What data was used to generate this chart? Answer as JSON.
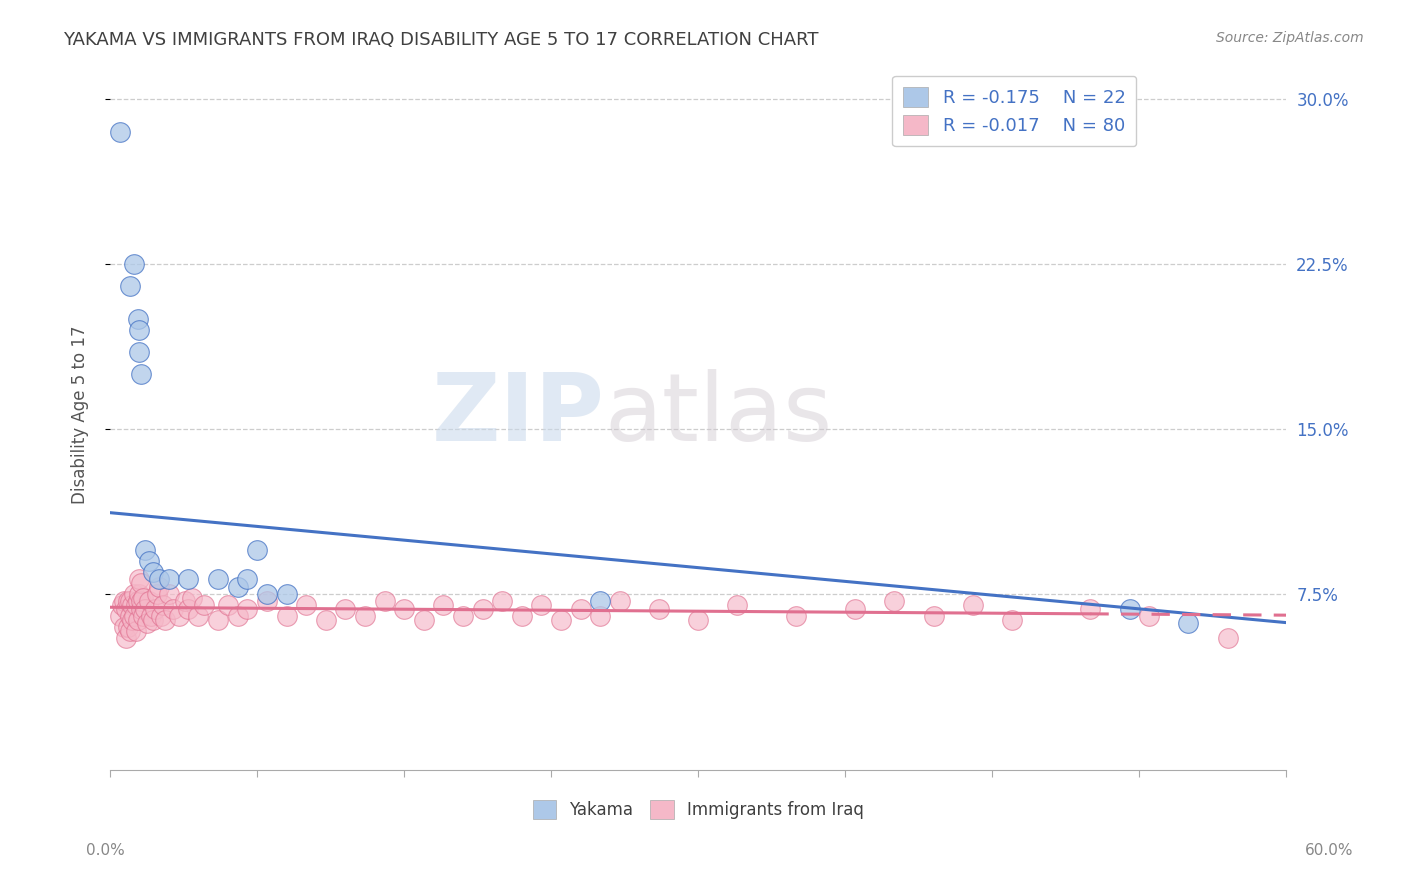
{
  "title": "YAKAMA VS IMMIGRANTS FROM IRAQ DISABILITY AGE 5 TO 17 CORRELATION CHART",
  "source_text": "Source: ZipAtlas.com",
  "ylabel": "Disability Age 5 to 17",
  "xmin": 0.0,
  "xmax": 0.6,
  "ymin": -0.005,
  "ymax": 0.318,
  "yticks": [
    0.075,
    0.15,
    0.225,
    0.3
  ],
  "ytick_labels": [
    "7.5%",
    "15.0%",
    "22.5%",
    "30.0%"
  ],
  "watermark_zip": "ZIP",
  "watermark_atlas": "atlas",
  "legend_r1": "-0.175",
  "legend_n1": "22",
  "legend_r2": "-0.017",
  "legend_n2": "80",
  "series1_label": "Yakama",
  "series2_label": "Immigrants from Iraq",
  "series1_color": "#adc8e8",
  "series2_color": "#f5b8c8",
  "line1_color": "#4472c4",
  "line2_color": "#e07090",
  "background_color": "#ffffff",
  "grid_color": "#c8c8c8",
  "title_color": "#404040",
  "yakama_x": [
    0.005,
    0.01,
    0.012,
    0.014,
    0.015,
    0.015,
    0.016,
    0.018,
    0.02,
    0.022,
    0.025,
    0.03,
    0.04,
    0.055,
    0.065,
    0.07,
    0.075,
    0.08,
    0.09,
    0.25,
    0.52,
    0.55
  ],
  "yakama_y": [
    0.285,
    0.215,
    0.225,
    0.2,
    0.195,
    0.185,
    0.175,
    0.095,
    0.09,
    0.085,
    0.082,
    0.082,
    0.082,
    0.082,
    0.078,
    0.082,
    0.095,
    0.075,
    0.075,
    0.072,
    0.068,
    0.062
  ],
  "iraq_x": [
    0.005,
    0.006,
    0.007,
    0.007,
    0.008,
    0.008,
    0.009,
    0.009,
    0.01,
    0.01,
    0.01,
    0.011,
    0.011,
    0.012,
    0.012,
    0.013,
    0.013,
    0.014,
    0.014,
    0.015,
    0.015,
    0.016,
    0.016,
    0.016,
    0.017,
    0.017,
    0.018,
    0.019,
    0.02,
    0.021,
    0.022,
    0.023,
    0.024,
    0.025,
    0.026,
    0.027,
    0.028,
    0.03,
    0.032,
    0.035,
    0.038,
    0.04,
    0.042,
    0.045,
    0.048,
    0.055,
    0.06,
    0.065,
    0.07,
    0.08,
    0.09,
    0.1,
    0.11,
    0.12,
    0.13,
    0.14,
    0.15,
    0.16,
    0.17,
    0.18,
    0.19,
    0.2,
    0.21,
    0.22,
    0.23,
    0.24,
    0.25,
    0.26,
    0.28,
    0.3,
    0.32,
    0.35,
    0.38,
    0.4,
    0.42,
    0.44,
    0.46,
    0.5,
    0.53,
    0.57
  ],
  "iraq_y": [
    0.065,
    0.07,
    0.072,
    0.06,
    0.068,
    0.055,
    0.072,
    0.06,
    0.065,
    0.072,
    0.058,
    0.07,
    0.063,
    0.065,
    0.075,
    0.07,
    0.058,
    0.072,
    0.063,
    0.075,
    0.082,
    0.068,
    0.072,
    0.08,
    0.065,
    0.073,
    0.068,
    0.062,
    0.072,
    0.065,
    0.063,
    0.068,
    0.075,
    0.078,
    0.065,
    0.07,
    0.063,
    0.075,
    0.068,
    0.065,
    0.072,
    0.068,
    0.073,
    0.065,
    0.07,
    0.063,
    0.07,
    0.065,
    0.068,
    0.072,
    0.065,
    0.07,
    0.063,
    0.068,
    0.065,
    0.072,
    0.068,
    0.063,
    0.07,
    0.065,
    0.068,
    0.072,
    0.065,
    0.07,
    0.063,
    0.068,
    0.065,
    0.072,
    0.068,
    0.063,
    0.07,
    0.065,
    0.068,
    0.072,
    0.065,
    0.07,
    0.063,
    0.068,
    0.065,
    0.055
  ],
  "iraq_trendline_start_x": 0.0,
  "iraq_trendline_end_x": 0.5,
  "iraq_trendline_start_y": 0.069,
  "iraq_trendline_end_y": 0.066,
  "yakama_trendline_start_x": 0.0,
  "yakama_trendline_end_x": 0.6,
  "yakama_trendline_start_y": 0.112,
  "yakama_trendline_end_y": 0.062
}
